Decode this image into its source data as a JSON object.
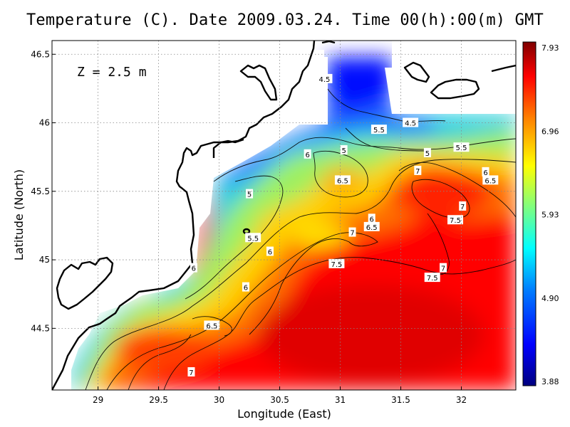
{
  "chart_data": {
    "type": "heatmap",
    "title": "Temperature (C). Date 2009.03.24. Time 00(h):00(m) GMT",
    "xlabel": "Longitude (East)",
    "ylabel": "Latitude (North)",
    "depth_label": "Z = 2.5 m",
    "x_ticks": [
      "29",
      "29.5",
      "30",
      "30.5",
      "31",
      "31.5",
      "32"
    ],
    "y_ticks": [
      "46.5",
      "46",
      "45.5",
      "45",
      "44.5"
    ],
    "xlim": [
      28.62,
      32.45
    ],
    "ylim": [
      44.05,
      46.6
    ],
    "colorbar": {
      "ticks": [
        "7.93",
        "6.96",
        "5.93",
        "4.90",
        "3.88"
      ],
      "min": 3.88,
      "max": 7.93,
      "colors": [
        "#00007f",
        "#0000ff",
        "#007fff",
        "#00ffff",
        "#7fff7f",
        "#ffff00",
        "#ff7f00",
        "#ff0000",
        "#7f0000"
      ]
    },
    "contour_labels": [
      {
        "text": "4.5",
        "lon": 30.87,
        "lat": 46.32
      },
      {
        "text": "4.5",
        "lon": 31.58,
        "lat": 46.0
      },
      {
        "text": "5.5",
        "lon": 31.32,
        "lat": 45.95
      },
      {
        "text": "5",
        "lon": 31.03,
        "lat": 45.8
      },
      {
        "text": "5",
        "lon": 31.72,
        "lat": 45.78
      },
      {
        "text": "5.5",
        "lon": 32.0,
        "lat": 45.82
      },
      {
        "text": "6",
        "lon": 30.73,
        "lat": 45.77
      },
      {
        "text": "6.5",
        "lon": 31.02,
        "lat": 45.58
      },
      {
        "text": "7",
        "lon": 31.64,
        "lat": 45.65
      },
      {
        "text": "6",
        "lon": 32.2,
        "lat": 45.64
      },
      {
        "text": "6.5",
        "lon": 32.24,
        "lat": 45.58
      },
      {
        "text": "5",
        "lon": 30.25,
        "lat": 45.48
      },
      {
        "text": "7",
        "lon": 32.01,
        "lat": 45.39
      },
      {
        "text": "7.5",
        "lon": 31.95,
        "lat": 45.29
      },
      {
        "text": "6",
        "lon": 31.26,
        "lat": 45.3
      },
      {
        "text": "6.5",
        "lon": 31.26,
        "lat": 45.24
      },
      {
        "text": "7",
        "lon": 31.1,
        "lat": 45.2
      },
      {
        "text": "5.5",
        "lon": 30.28,
        "lat": 45.16
      },
      {
        "text": "6",
        "lon": 30.42,
        "lat": 45.06
      },
      {
        "text": "7.5",
        "lon": 30.97,
        "lat": 44.97
      },
      {
        "text": "7",
        "lon": 31.85,
        "lat": 44.94
      },
      {
        "text": "7.5",
        "lon": 31.76,
        "lat": 44.87
      },
      {
        "text": "6",
        "lon": 29.79,
        "lat": 44.94
      },
      {
        "text": "6",
        "lon": 30.22,
        "lat": 44.8
      },
      {
        "text": "6.5",
        "lon": 29.94,
        "lat": 44.52
      },
      {
        "text": "7",
        "lon": 29.77,
        "lat": 44.18
      }
    ]
  }
}
